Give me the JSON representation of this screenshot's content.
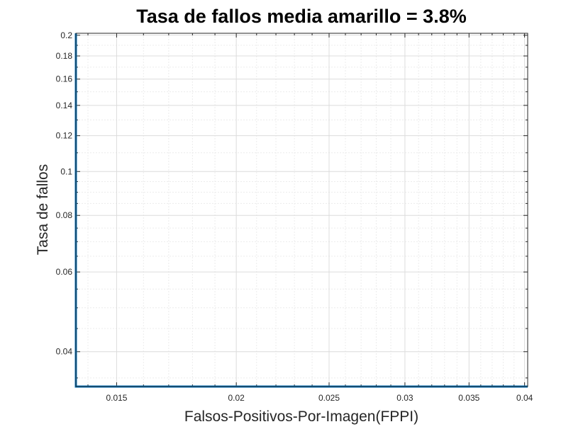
{
  "chart_data": {
    "type": "line",
    "title": "Tasa de fallos media amarillo = 3.8%",
    "xlabel": "Falsos-Positivos-Por-Imagen(FPPI)",
    "ylabel": "Tasa de fallos",
    "xscale": "log",
    "yscale": "log",
    "xlim": [
      0.0136,
      0.0403
    ],
    "ylim": [
      0.0335,
      0.202
    ],
    "grid": true,
    "x_ticks": [
      0.015,
      0.02,
      0.025,
      0.03,
      0.035,
      0.04
    ],
    "x_tick_labels": [
      "0.015",
      "0.02",
      "0.025",
      "0.03",
      "0.035",
      "0.04"
    ],
    "x_minor_ticks": [
      0.014,
      0.016,
      0.017,
      0.018,
      0.019,
      0.021,
      0.022,
      0.023,
      0.024,
      0.026,
      0.027,
      0.028,
      0.029,
      0.031,
      0.032,
      0.033,
      0.034,
      0.036,
      0.037,
      0.038,
      0.039
    ],
    "y_ticks": [
      0.04,
      0.06,
      0.08,
      0.1,
      0.12,
      0.14,
      0.16,
      0.18,
      0.2
    ],
    "y_tick_labels": [
      "0.04",
      "0.06",
      "0.08",
      "0.1",
      "0.12",
      "0.14",
      "0.16",
      "0.18",
      "0.2"
    ],
    "y_minor_ticks": [
      0.035,
      0.045,
      0.05,
      0.055,
      0.065,
      0.07,
      0.075,
      0.085,
      0.09,
      0.095,
      0.11,
      0.13,
      0.15,
      0.17,
      0.19
    ],
    "series": [
      {
        "color": "#0072BD",
        "points": [
          [
            0.0136,
            0.202
          ],
          [
            0.0136,
            0.0335
          ],
          [
            0.0403,
            0.0335
          ]
        ]
      }
    ]
  }
}
